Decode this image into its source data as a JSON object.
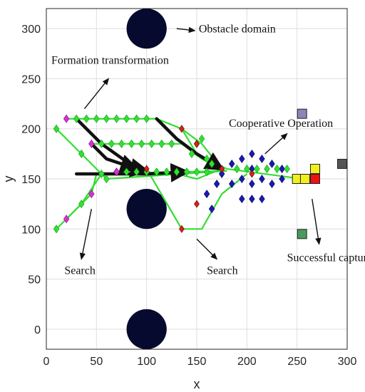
{
  "chart_data": {
    "type": "scatter",
    "title": "",
    "xlabel": "x",
    "ylabel": "y",
    "xlim": [
      0,
      300
    ],
    "ylim": [
      -20,
      320
    ],
    "xticks": [
      0,
      50,
      100,
      150,
      200,
      250,
      300
    ],
    "yticks": [
      0,
      50,
      100,
      150,
      200,
      250,
      300
    ],
    "xtick_labels": [
      "0",
      "50",
      "100",
      "150",
      "200",
      "250",
      "300"
    ],
    "ytick_labels": [
      "0",
      "50",
      "100",
      "150",
      "200",
      "250",
      "300"
    ],
    "grid": true,
    "colors": {
      "obstacle": "#050a2e",
      "agent_path": "#33dd33",
      "agent_marker": "#33e033",
      "formation_marker": "#1a1ab0",
      "black_path": "#111111",
      "magenta_marker": "#d830d0",
      "red_marker": "#d42020",
      "target_red": "#ee1111",
      "target_yellow": "#f0f020",
      "purple_square": "#8a86b8",
      "gray_square": "#555555",
      "green_square": "#4a9a60"
    },
    "obstacles": [
      {
        "x": 100,
        "y": 300,
        "r": 10
      },
      {
        "x": 100,
        "y": 120,
        "r": 10
      },
      {
        "x": 100,
        "y": 0,
        "r": 10
      }
    ],
    "green_paths": [
      [
        [
          20,
          210
        ],
        [
          110,
          210
        ],
        [
          135,
          200
        ],
        [
          155,
          185
        ],
        [
          175,
          160
        ]
      ],
      [
        [
          45,
          185
        ],
        [
          135,
          185
        ],
        [
          155,
          170
        ],
        [
          175,
          160
        ]
      ],
      [
        [
          10,
          200
        ],
        [
          35,
          175
        ],
        [
          60,
          150
        ],
        [
          180,
          158
        ]
      ],
      [
        [
          10,
          100
        ],
        [
          35,
          125
        ],
        [
          55,
          155
        ],
        [
          180,
          158
        ]
      ],
      [
        [
          20,
          110
        ],
        [
          45,
          135
        ],
        [
          50,
          155
        ],
        [
          130,
          155
        ],
        [
          150,
          150
        ],
        [
          175,
          160
        ]
      ],
      [
        [
          100,
          160
        ],
        [
          135,
          100
        ],
        [
          155,
          100
        ],
        [
          175,
          135
        ],
        [
          200,
          155
        ]
      ],
      [
        [
          135,
          200
        ],
        [
          150,
          175
        ],
        [
          180,
          160
        ]
      ],
      [
        [
          180,
          160
        ],
        [
          255,
          150
        ],
        [
          270,
          150
        ]
      ]
    ],
    "green_diamonds": [
      [
        30,
        210
      ],
      [
        40,
        210
      ],
      [
        50,
        210
      ],
      [
        60,
        210
      ],
      [
        70,
        210
      ],
      [
        80,
        210
      ],
      [
        90,
        210
      ],
      [
        100,
        210
      ],
      [
        55,
        185
      ],
      [
        65,
        185
      ],
      [
        75,
        185
      ],
      [
        85,
        185
      ],
      [
        95,
        185
      ],
      [
        105,
        185
      ],
      [
        115,
        185
      ],
      [
        125,
        185
      ],
      [
        10,
        200
      ],
      [
        35,
        175
      ],
      [
        60,
        150
      ],
      [
        10,
        100
      ],
      [
        35,
        125
      ],
      [
        55,
        155
      ],
      [
        70,
        157
      ],
      [
        80,
        157
      ],
      [
        90,
        157
      ],
      [
        100,
        157
      ],
      [
        110,
        157
      ],
      [
        120,
        157
      ],
      [
        130,
        157
      ],
      [
        140,
        157
      ],
      [
        150,
        157
      ],
      [
        160,
        157
      ],
      [
        145,
        175
      ],
      [
        150,
        185
      ],
      [
        155,
        190
      ],
      [
        160,
        170
      ],
      [
        165,
        165
      ],
      [
        190,
        160
      ],
      [
        200,
        160
      ],
      [
        210,
        160
      ],
      [
        220,
        160
      ],
      [
        230,
        160
      ],
      [
        240,
        160
      ]
    ],
    "black_paths": [
      [
        [
          30,
          210
        ],
        [
          55,
          185
        ],
        [
          90,
          160
        ],
        [
          100,
          158
        ]
      ],
      [
        [
          110,
          210
        ],
        [
          130,
          190
        ],
        [
          150,
          175
        ],
        [
          175,
          160
        ]
      ],
      [
        [
          45,
          185
        ],
        [
          60,
          170
        ],
        [
          90,
          160
        ]
      ],
      [
        [
          30,
          155
        ],
        [
          100,
          155
        ],
        [
          140,
          157
        ]
      ]
    ],
    "blue_formation": [
      [
        175,
        155
      ],
      [
        185,
        165
      ],
      [
        185,
        145
      ],
      [
        195,
        170
      ],
      [
        195,
        150
      ],
      [
        195,
        130
      ],
      [
        205,
        175
      ],
      [
        205,
        160
      ],
      [
        205,
        145
      ],
      [
        205,
        130
      ],
      [
        215,
        170
      ],
      [
        215,
        150
      ],
      [
        215,
        130
      ],
      [
        225,
        165
      ],
      [
        225,
        145
      ],
      [
        235,
        160
      ],
      [
        235,
        150
      ],
      [
        160,
        135
      ],
      [
        165,
        120
      ],
      [
        170,
        145
      ]
    ],
    "magenta_markers": [
      [
        20,
        210
      ],
      [
        45,
        185
      ],
      [
        20,
        110
      ],
      [
        45,
        135
      ],
      [
        70,
        157
      ]
    ],
    "red_markers": [
      [
        135,
        200
      ],
      [
        100,
        160
      ],
      [
        135,
        100
      ],
      [
        150,
        125
      ],
      [
        175,
        160
      ],
      [
        150,
        185
      ],
      [
        205,
        155
      ]
    ],
    "target_squares": [
      {
        "x": 255,
        "y": 215,
        "kind": "purple_square"
      },
      {
        "x": 295,
        "y": 165,
        "kind": "gray_square"
      },
      {
        "x": 255,
        "y": 95,
        "kind": "green_square"
      },
      {
        "x": 268,
        "y": 150,
        "kind": "target_red"
      },
      {
        "x": 268,
        "y": 160,
        "kind": "target_yellow"
      },
      {
        "x": 250,
        "y": 150,
        "kind": "target_yellow"
      },
      {
        "x": 258,
        "y": 150,
        "kind": "target_yellow"
      }
    ],
    "annotations": [
      {
        "text": "Obstacle domain",
        "x": 152,
        "y": 296,
        "arrow_from": [
          130,
          300
        ],
        "arrow_to": [
          148,
          298
        ]
      },
      {
        "text": "Formation transformation",
        "x": 5,
        "y": 265,
        "arrow_from": [
          38,
          220
        ],
        "arrow_to": [
          62,
          250
        ]
      },
      {
        "text": "Cooperative Operation",
        "x": 182,
        "y": 202,
        "arrow_from": [
          218,
          175
        ],
        "arrow_to": [
          240,
          195
        ]
      },
      {
        "text": "Search",
        "x": 18,
        "y": 55,
        "arrow_from": [
          45,
          120
        ],
        "arrow_to": [
          35,
          70
        ]
      },
      {
        "text": "Search",
        "x": 160,
        "y": 55,
        "arrow_from": [
          150,
          90
        ],
        "arrow_to": [
          170,
          70
        ]
      },
      {
        "text": "Successful capture",
        "x": 240,
        "y": 68,
        "arrow_from": [
          265,
          130
        ],
        "arrow_to": [
          272,
          85
        ]
      }
    ]
  }
}
